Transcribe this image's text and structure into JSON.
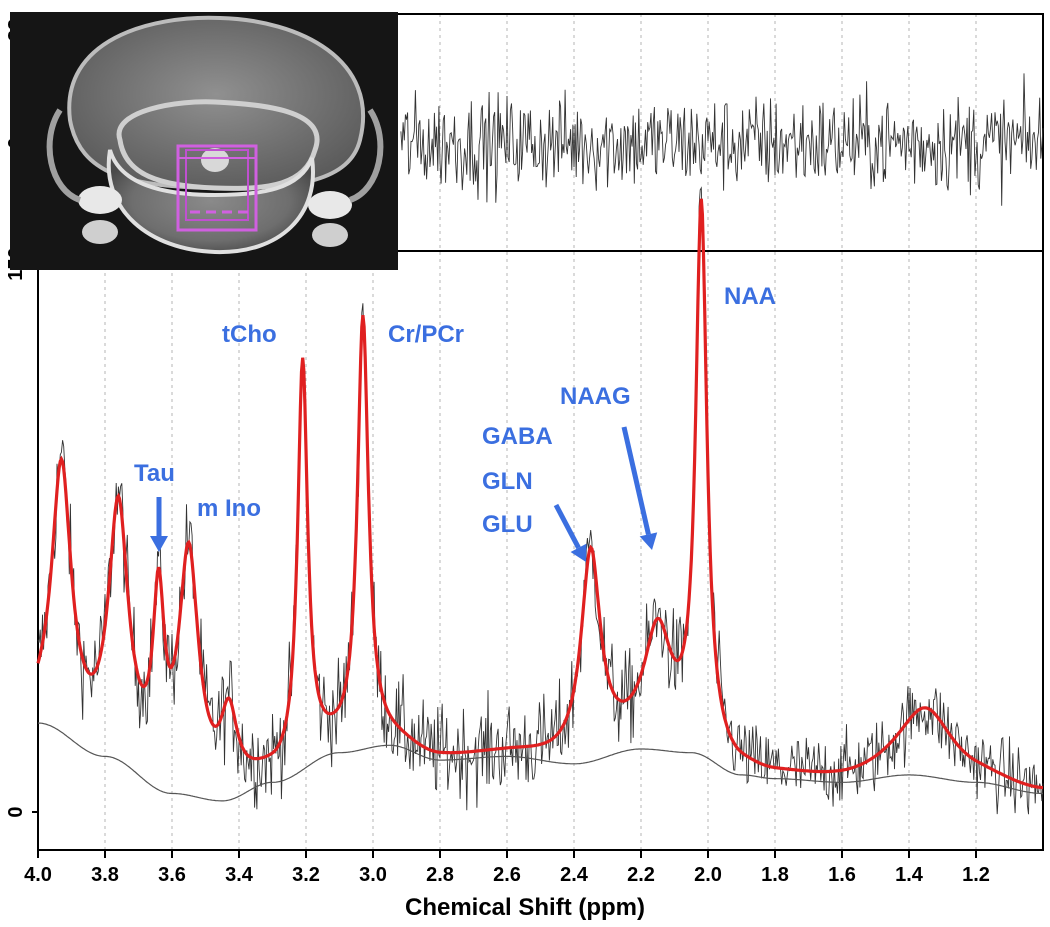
{
  "chart_data": {
    "type": "line",
    "xlabel": "Chemical Shift (ppm)",
    "x_reversed": true,
    "xlim": [
      4.0,
      1.0
    ],
    "x_ticks": [
      "4.0",
      "3.8",
      "3.6",
      "3.4",
      "3.2",
      "3.0",
      "2.8",
      "2.6",
      "2.4",
      "2.2",
      "2.0",
      "1.8",
      "1.6",
      "1.4",
      "1.2"
    ],
    "x_tick_values": [
      4.0,
      3.8,
      3.6,
      3.4,
      3.2,
      3.0,
      2.8,
      2.6,
      2.4,
      2.2,
      2.0,
      1.8,
      1.6,
      1.4,
      1.2
    ],
    "panels": {
      "residual": {
        "y_ticks": [
          "33",
          "0"
        ],
        "y_tick_values": [
          33,
          0
        ],
        "ylim": [
          -33,
          33
        ]
      },
      "spectrum": {
        "y_ticks": [
          "150",
          "0"
        ],
        "y_tick_values": [
          150,
          0
        ],
        "ylim": [
          -10,
          155
        ]
      }
    },
    "grid": "vertical dotted at x ticks",
    "colors": {
      "fit": "#e02020",
      "raw": "#333333",
      "baseline": "#555555",
      "annotation": "#3b6fe0"
    },
    "series": [],
    "fit_peaks": [
      {
        "ppm": 3.93,
        "height": 70,
        "width": 0.035
      },
      {
        "ppm": 3.76,
        "height": 65,
        "width": 0.035
      },
      {
        "ppm": 3.64,
        "height": 45,
        "width": 0.02
      },
      {
        "ppm": 3.55,
        "height": 62,
        "width": 0.035
      },
      {
        "ppm": 3.43,
        "height": 20,
        "width": 0.03
      },
      {
        "ppm": 3.21,
        "height": 108,
        "width": 0.018
      },
      {
        "ppm": 3.03,
        "height": 115,
        "width": 0.02
      },
      {
        "ppm": 2.35,
        "height": 55,
        "width": 0.035
      },
      {
        "ppm": 2.15,
        "height": 30,
        "width": 0.05
      },
      {
        "ppm": 2.02,
        "height": 145,
        "width": 0.02
      },
      {
        "ppm": 1.35,
        "height": 18,
        "width": 0.1
      }
    ],
    "baseline_curve": [
      [
        4.0,
        24
      ],
      [
        3.8,
        15
      ],
      [
        3.6,
        5
      ],
      [
        3.45,
        3
      ],
      [
        3.3,
        8
      ],
      [
        3.1,
        16
      ],
      [
        2.95,
        18
      ],
      [
        2.8,
        14
      ],
      [
        2.6,
        15
      ],
      [
        2.4,
        13
      ],
      [
        2.2,
        17
      ],
      [
        2.05,
        16
      ],
      [
        1.9,
        10
      ],
      [
        1.8,
        9
      ],
      [
        1.6,
        8
      ],
      [
        1.4,
        10
      ],
      [
        1.2,
        8
      ],
      [
        1.0,
        5
      ]
    ],
    "annotations": [
      {
        "text": "tCho",
        "ppm": 3.21
      },
      {
        "text": "Cr/PCr",
        "ppm": 3.03
      },
      {
        "text": "NAA",
        "ppm": 2.02
      },
      {
        "text": "Tau",
        "ppm": 3.64,
        "arrow": true
      },
      {
        "text": "m Ino",
        "ppm": 3.55
      },
      {
        "text": "GABA",
        "ppm": 2.35
      },
      {
        "text": "GLN",
        "ppm": 2.35
      },
      {
        "text": "GLU",
        "ppm": 2.35,
        "arrow": true
      },
      {
        "text": "NAAG",
        "ppm": 2.15,
        "arrow": true
      }
    ]
  }
}
